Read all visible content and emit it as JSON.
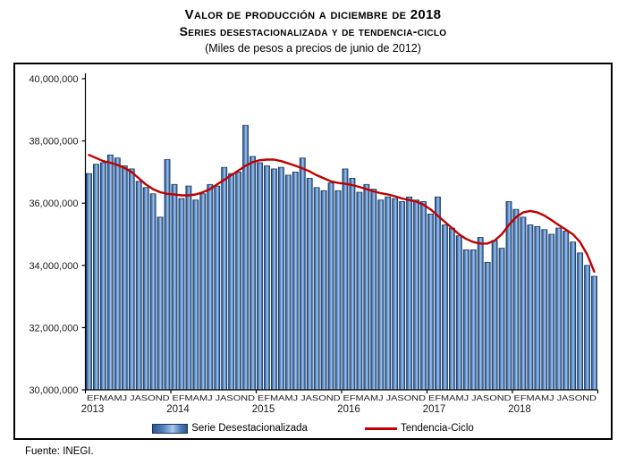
{
  "header": {
    "title_line1": "Valor de producción a diciembre de 2018",
    "title_line2": "Series desestacionalizada y de tendencia-ciclo",
    "subtitle": "(Miles de pesos a precios de junio de 2012)"
  },
  "footer": {
    "source": "Fuente: INEGI."
  },
  "chart_data": {
    "type": "bar",
    "title": "Valor de producción a diciembre de 2018 — Series desestacionalizada y de tendencia-ciclo",
    "units": "Miles de pesos a precios de junio de 2012",
    "x_years": [
      "2013",
      "2014",
      "2015",
      "2016",
      "2017",
      "2018"
    ],
    "month_row": "EFMAMJ JASOND",
    "ylim": [
      30000000,
      40000000
    ],
    "ytick_step": 2000000,
    "grid": false,
    "legend_position": "bottom",
    "colors": {
      "bar": "#4F81BD",
      "bar_border": "#17375E",
      "line": "#C00000"
    },
    "series": [
      {
        "name": "Serie Desestacionalizada",
        "type": "bar",
        "color": "#4F81BD",
        "values": [
          36950000,
          37250000,
          37300000,
          37550000,
          37450000,
          37200000,
          37100000,
          36700000,
          36500000,
          36300000,
          35550000,
          37400000,
          36600000,
          36150000,
          36550000,
          36100000,
          36300000,
          36600000,
          36550000,
          37150000,
          36950000,
          37000000,
          38500000,
          37500000,
          37300000,
          37200000,
          37100000,
          37150000,
          36900000,
          37000000,
          37450000,
          36800000,
          36500000,
          36400000,
          36650000,
          36400000,
          37100000,
          36800000,
          36350000,
          36600000,
          36450000,
          36100000,
          36200000,
          36150000,
          36050000,
          36200000,
          36100000,
          36050000,
          35650000,
          36200000,
          35300000,
          35200000,
          34950000,
          34500000,
          34500000,
          34900000,
          34100000,
          34800000,
          34550000,
          36050000,
          35800000,
          35550000,
          35300000,
          35250000,
          35150000,
          35000000,
          35200000,
          35100000,
          34750000,
          34400000,
          34000000,
          33650000
        ]
      },
      {
        "name": "Tendencia-Ciclo",
        "type": "line",
        "color": "#C00000",
        "values": [
          37550000,
          37450000,
          37350000,
          37300000,
          37230000,
          37130000,
          37000000,
          36800000,
          36600000,
          36450000,
          36350000,
          36300000,
          36280000,
          36250000,
          36250000,
          36280000,
          36350000,
          36450000,
          36600000,
          36750000,
          36900000,
          37050000,
          37200000,
          37320000,
          37380000,
          37400000,
          37400000,
          37350000,
          37280000,
          37200000,
          37120000,
          37020000,
          36900000,
          36800000,
          36700000,
          36650000,
          36620000,
          36580000,
          36520000,
          36450000,
          36380000,
          36320000,
          36280000,
          36220000,
          36150000,
          36100000,
          36050000,
          35950000,
          35800000,
          35600000,
          35400000,
          35200000,
          35000000,
          34850000,
          34750000,
          34700000,
          34700000,
          34800000,
          35000000,
          35300000,
          35550000,
          35700000,
          35750000,
          35700000,
          35600000,
          35450000,
          35300000,
          35150000,
          35000000,
          34750000,
          34350000,
          33800000
        ]
      }
    ]
  }
}
